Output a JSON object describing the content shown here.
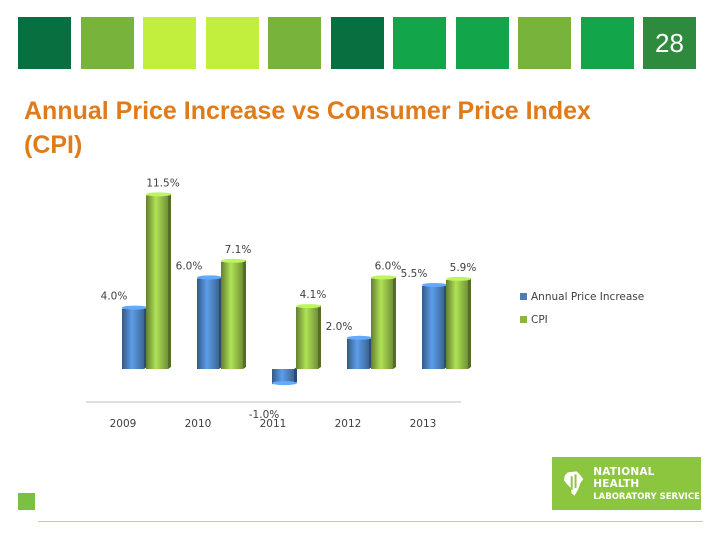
{
  "header": {
    "page_number": "28",
    "tiles": [
      "#087040",
      "#78b43c",
      "#c2ee3d",
      "#c2ee3d",
      "#78b43c",
      "#087040",
      "#12a54a",
      "#12a54a",
      "#78b43c",
      "#12a54a"
    ]
  },
  "title": "Annual Price Increase vs Consumer Price Index (CPI)",
  "chart_data": {
    "type": "bar",
    "categories": [
      "2009",
      "2010",
      "2011",
      "2012",
      "2013"
    ],
    "series": [
      {
        "name": "Annual Price Increase",
        "values": [
          4.0,
          6.0,
          -1.0,
          2.0,
          5.5
        ],
        "labels": [
          "4.0%",
          "6.0%",
          "-1.0%",
          "2.0%",
          "5.5%"
        ],
        "color": "#4a7ebb"
      },
      {
        "name": "CPI",
        "values": [
          11.5,
          7.1,
          4.1,
          6.0,
          5.9
        ],
        "labels": [
          "11.5%",
          "7.1%",
          "4.1%",
          "6.0%",
          "5.9%"
        ],
        "color": "#8db545"
      }
    ],
    "ylim": [
      -1.0,
      11.5
    ],
    "legend_position": "right",
    "grid": false
  },
  "logo": {
    "line1": "NATIONAL HEALTH",
    "line2": "LABORATORY SERVICE",
    "color": "#8cc63f"
  }
}
